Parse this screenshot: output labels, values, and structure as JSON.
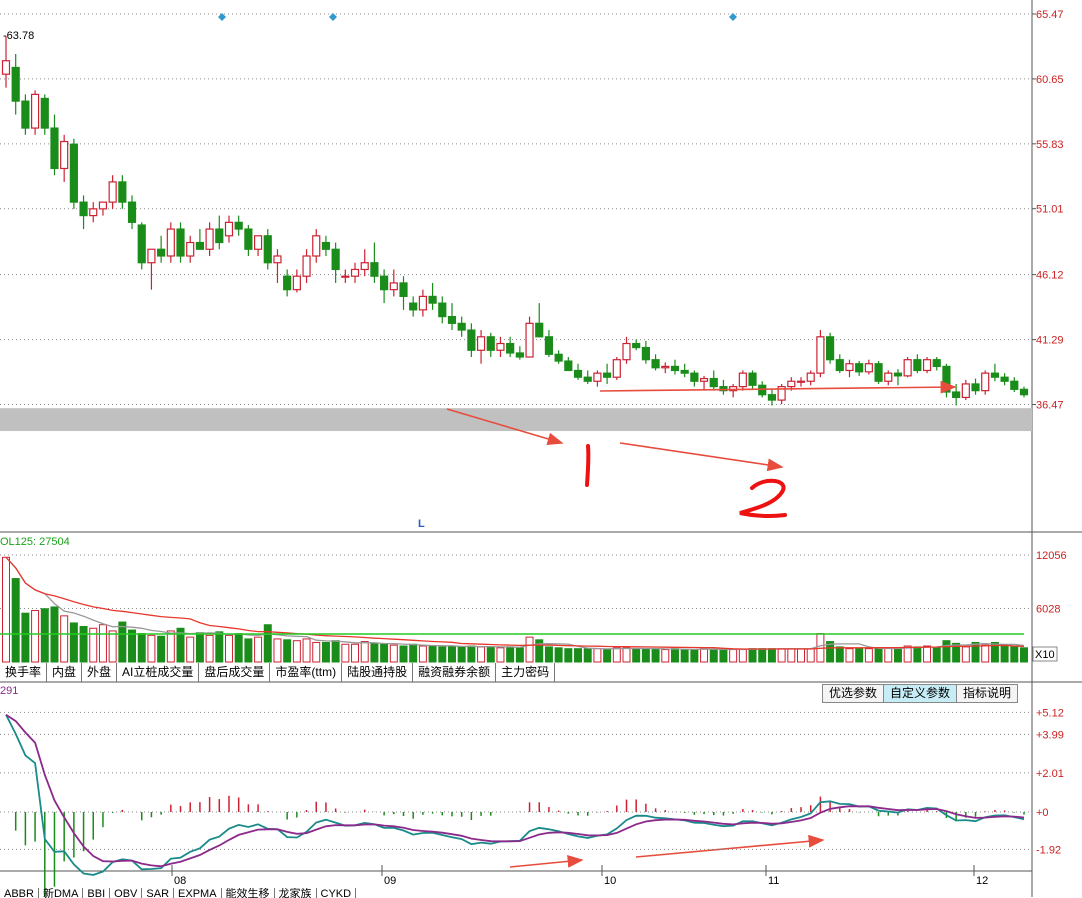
{
  "chart_data": [
    {
      "type": "candlestick",
      "title": "",
      "y_ticks": [
        "65.47",
        "60.65",
        "55.83",
        "51.01",
        "46.12",
        "41.29",
        "36.47"
      ],
      "ylim": [
        32.5,
        65.47
      ],
      "high_label": "63.78",
      "x_ticks": [
        "08",
        "09",
        "10",
        "11",
        "12"
      ],
      "grid": true,
      "ohlc": [
        [
          61.0,
          63.8,
          60.0,
          62.0
        ],
        [
          61.5,
          62.5,
          58.0,
          59.0
        ],
        [
          59.0,
          59.5,
          56.5,
          57.0
        ],
        [
          57.0,
          59.8,
          56.5,
          59.5
        ],
        [
          59.2,
          59.5,
          56.5,
          57.0
        ],
        [
          57.0,
          58.0,
          53.5,
          54.0
        ],
        [
          54.0,
          56.5,
          53.0,
          56.0
        ],
        [
          55.8,
          56.2,
          51.0,
          51.5
        ],
        [
          51.5,
          52.0,
          49.5,
          50.5
        ],
        [
          50.5,
          51.5,
          50.0,
          51.0
        ],
        [
          51.0,
          51.5,
          50.5,
          51.5
        ],
        [
          51.5,
          53.5,
          51.0,
          53.0
        ],
        [
          53.0,
          53.5,
          51.0,
          51.5
        ],
        [
          51.5,
          52.0,
          49.5,
          50.0
        ],
        [
          49.8,
          50.0,
          46.5,
          47.0
        ],
        [
          47.0,
          48.0,
          45.0,
          48.0
        ],
        [
          48.0,
          49.0,
          47.0,
          47.5
        ],
        [
          47.5,
          50.0,
          47.0,
          49.5
        ],
        [
          49.5,
          50.0,
          47.0,
          47.5
        ],
        [
          47.5,
          49.0,
          47.0,
          48.5
        ],
        [
          48.5,
          49.5,
          48.0,
          48.0
        ],
        [
          48.0,
          50.0,
          47.5,
          49.5
        ],
        [
          49.5,
          50.5,
          48.0,
          48.5
        ],
        [
          49.0,
          50.5,
          48.5,
          50.0
        ],
        [
          50.0,
          50.5,
          49.0,
          49.5
        ],
        [
          49.5,
          49.8,
          47.5,
          48.0
        ],
        [
          48.0,
          49.0,
          47.5,
          49.0
        ],
        [
          49.0,
          49.5,
          46.5,
          47.0
        ],
        [
          47.0,
          48.0,
          45.5,
          47.5
        ],
        [
          46.0,
          46.5,
          44.5,
          45.0
        ],
        [
          45.0,
          46.5,
          44.8,
          46.0
        ],
        [
          46.0,
          48.0,
          45.5,
          47.5
        ],
        [
          47.5,
          49.5,
          47.0,
          49.0
        ],
        [
          48.5,
          49.0,
          47.5,
          48.0
        ],
        [
          48.0,
          48.5,
          45.5,
          46.5
        ],
        [
          46.0,
          46.5,
          45.5,
          46.0
        ],
        [
          46.0,
          47.0,
          45.5,
          46.5
        ],
        [
          46.5,
          48.0,
          46.0,
          47.0
        ],
        [
          47.0,
          48.5,
          45.5,
          46.0
        ],
        [
          46.0,
          46.5,
          44.0,
          45.0
        ],
        [
          45.0,
          46.5,
          44.5,
          45.5
        ],
        [
          45.5,
          46.0,
          43.5,
          44.5
        ],
        [
          44.0,
          44.5,
          43.0,
          43.5
        ],
        [
          43.5,
          45.0,
          43.0,
          44.5
        ],
        [
          44.5,
          45.5,
          43.5,
          44.0
        ],
        [
          44.0,
          44.5,
          42.5,
          43.0
        ],
        [
          43.0,
          44.0,
          42.0,
          42.5
        ],
        [
          42.5,
          43.0,
          41.5,
          42.0
        ],
        [
          42.0,
          42.5,
          40.0,
          40.5
        ],
        [
          40.5,
          42.0,
          39.5,
          41.5
        ],
        [
          41.5,
          41.8,
          40.0,
          40.5
        ],
        [
          40.5,
          41.5,
          40.0,
          41.0
        ],
        [
          41.0,
          41.5,
          40.0,
          40.3
        ],
        [
          40.3,
          40.8,
          39.8,
          40.0
        ],
        [
          40.0,
          43.0,
          40.0,
          42.5
        ],
        [
          42.5,
          44.0,
          41.5,
          41.5
        ],
        [
          41.5,
          42.0,
          40.0,
          40.2
        ],
        [
          40.2,
          40.5,
          39.5,
          39.7
        ],
        [
          39.7,
          40.0,
          39.0,
          39.0
        ],
        [
          39.0,
          39.5,
          38.3,
          38.5
        ],
        [
          38.5,
          39.0,
          38.0,
          38.2
        ],
        [
          38.2,
          39.0,
          37.8,
          38.8
        ],
        [
          38.8,
          39.5,
          38.0,
          38.5
        ],
        [
          38.5,
          40.0,
          38.3,
          39.8
        ],
        [
          39.8,
          41.5,
          39.5,
          41.0
        ],
        [
          41.0,
          41.3,
          40.5,
          40.7
        ],
        [
          40.7,
          41.2,
          39.5,
          39.8
        ],
        [
          39.8,
          40.2,
          39.0,
          39.2
        ],
        [
          39.2,
          39.6,
          38.8,
          39.3
        ],
        [
          39.3,
          39.8,
          38.7,
          39.0
        ],
        [
          39.0,
          39.5,
          38.5,
          38.8
        ],
        [
          38.8,
          39.0,
          37.8,
          38.2
        ],
        [
          38.2,
          38.6,
          37.5,
          38.4
        ],
        [
          38.4,
          39.0,
          37.5,
          37.8
        ],
        [
          37.8,
          38.3,
          37.2,
          37.5
        ],
        [
          37.5,
          38.0,
          37.0,
          37.8
        ],
        [
          37.8,
          39.0,
          37.5,
          38.8
        ],
        [
          38.8,
          39.0,
          37.6,
          37.9
        ],
        [
          37.9,
          38.2,
          37.0,
          37.2
        ],
        [
          37.2,
          37.6,
          36.4,
          36.8
        ],
        [
          36.8,
          38.0,
          36.5,
          37.8
        ],
        [
          37.8,
          38.5,
          37.5,
          38.2
        ],
        [
          38.2,
          38.5,
          37.8,
          38.2
        ],
        [
          38.2,
          39.0,
          37.9,
          38.8
        ],
        [
          38.8,
          42.0,
          38.5,
          41.5
        ],
        [
          41.5,
          41.8,
          39.5,
          39.8
        ],
        [
          39.8,
          40.2,
          38.8,
          39.0
        ],
        [
          39.0,
          39.8,
          38.5,
          39.5
        ],
        [
          39.5,
          39.7,
          38.6,
          38.9
        ],
        [
          38.9,
          39.8,
          38.7,
          39.5
        ],
        [
          39.5,
          39.7,
          38.0,
          38.2
        ],
        [
          38.2,
          39.0,
          37.9,
          38.8
        ],
        [
          38.8,
          39.1,
          37.9,
          38.6
        ],
        [
          38.6,
          40.0,
          38.5,
          39.8
        ],
        [
          39.8,
          40.2,
          38.8,
          39.0
        ],
        [
          39.0,
          40.0,
          38.8,
          39.8
        ],
        [
          39.8,
          40.0,
          39.0,
          39.3
        ],
        [
          39.3,
          39.5,
          37.0,
          37.4
        ],
        [
          37.4,
          38.0,
          36.4,
          37.0
        ],
        [
          37.0,
          38.3,
          36.8,
          38.0
        ],
        [
          38.0,
          38.4,
          37.2,
          37.5
        ],
        [
          37.5,
          39.0,
          37.2,
          38.8
        ],
        [
          38.8,
          39.5,
          38.2,
          38.5
        ],
        [
          38.5,
          38.8,
          37.9,
          38.2
        ],
        [
          38.2,
          38.5,
          37.4,
          37.6
        ],
        [
          37.6,
          37.8,
          37.0,
          37.2
        ]
      ],
      "shaded_band": [
        34.5,
        36.2
      ],
      "diamond_markers_count": 3
    },
    {
      "type": "bar",
      "legend": "OL125: 27504",
      "y_ticks": [
        "12056",
        "6028"
      ],
      "unit_label": "X10",
      "ylim": [
        0,
        12056
      ],
      "volume": [
        11800,
        9400,
        5500,
        5800,
        6000,
        6200,
        5200,
        4400,
        4000,
        3800,
        4200,
        3500,
        4500,
        3600,
        3200,
        3000,
        2900,
        3500,
        3800,
        2800,
        3300,
        3000,
        3400,
        3000,
        3200,
        2600,
        2800,
        4200,
        2600,
        2500,
        2400,
        2600,
        2200,
        2200,
        2400,
        2000,
        2000,
        2300,
        2100,
        2000,
        1900,
        1800,
        2000,
        1800,
        1800,
        1700,
        1800,
        1700,
        1800,
        1700,
        1700,
        1600,
        1700,
        1600,
        2800,
        2500,
        1700,
        1600,
        1500,
        1500,
        1500,
        1500,
        1400,
        1600,
        1600,
        1500,
        1500,
        1400,
        1400,
        1500,
        1400,
        1400,
        1500,
        1400,
        1400,
        1400,
        1400,
        1500,
        1500,
        1500,
        1500,
        1500,
        1500,
        1500,
        3200,
        2300,
        1700,
        1500,
        1500,
        1500,
        1500,
        1600,
        1500,
        1800,
        1700,
        1800,
        1600,
        2400,
        2100,
        1700,
        2200,
        1900,
        2200,
        1900,
        1700,
        1600
      ],
      "up_flags": "derived_from_price",
      "grid": true
    },
    {
      "type": "bar",
      "legend": "291",
      "y_ticks": [
        "+5.12",
        "+3.99",
        "+2.01",
        "+0",
        "-1.92"
      ],
      "ylim": [
        -3.0,
        5.6
      ],
      "x_ticks": [
        "08",
        "09",
        "10",
        "11",
        "12"
      ],
      "grid": true
    }
  ],
  "tabs_top": [
    "换手率",
    "内盘",
    "外盘",
    "AI立桩成交量",
    "盘后成交量",
    "市盈率(ttm)",
    "陆股通持股",
    "融资融券余额",
    "主力密码"
  ],
  "buttons": [
    "优选参数",
    "自定义参数",
    "指标说明"
  ],
  "active_button": "自定义参数",
  "tabs_bottom": [
    "ABBR",
    "新DMA",
    "BBI",
    "OBV",
    "SAR",
    "EXPMA",
    "能效生移",
    "龙家族",
    "CYKD"
  ],
  "marker_text": "L",
  "handwritten_labels": [
    "1",
    "2"
  ],
  "colors": {
    "up": "#cc2233",
    "down": "#1a8c1a",
    "grid": "#8a8a8a",
    "arrow": "#e84c3d",
    "band": "#c0c0c0",
    "ma_short": "#999999",
    "ma_long": "#e8382d",
    "ma_flat": "#22cc22",
    "diff": "#1a8a8a",
    "dea": "#8b2a8b",
    "diamond": "#3399cc"
  }
}
